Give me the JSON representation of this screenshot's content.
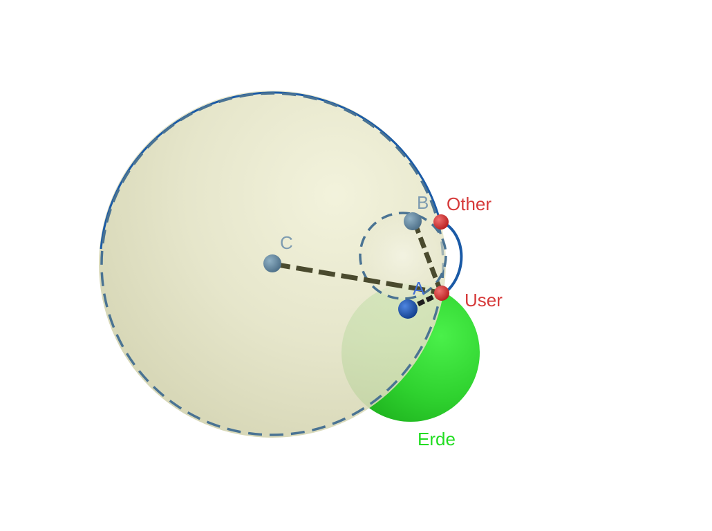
{
  "labels": {
    "point_c": "C",
    "point_b": "B",
    "point_a": "A",
    "point_other": "Other",
    "point_user": "User",
    "sphere_earth": "Erde"
  },
  "colors": {
    "large_sphere": "#e6e6c4",
    "earth_sphere": "#33d633",
    "dashed_circle": "#4a7393",
    "blue_arc": "#1a5aa6",
    "segment": "#4a4a2e",
    "point_blue": "#1f56b0",
    "point_gray": "#6b8ea6",
    "point_red": "#d63a3a",
    "label_red": "#d63a3a",
    "label_blue": "#3f6fd6",
    "label_gray": "#7d9bb0",
    "label_green": "#22dd22"
  }
}
